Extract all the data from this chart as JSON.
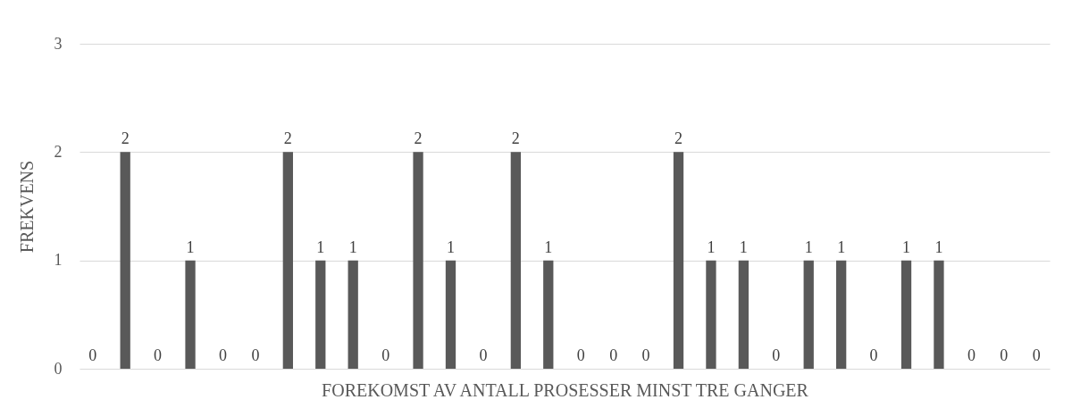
{
  "chart_data": {
    "type": "bar",
    "xlabel": "FOREKOMST AV ANTALL PROSESSER MINST TRE GANGER",
    "ylabel": "FREKVENS",
    "categories": [
      null,
      null,
      null,
      null,
      null,
      null,
      null,
      null,
      null,
      null,
      null,
      null,
      null,
      null,
      null,
      null,
      null,
      null,
      null,
      null,
      null,
      null,
      null,
      null,
      null,
      null,
      null,
      null,
      null,
      null
    ],
    "values": [
      0,
      2,
      0,
      1,
      0,
      0,
      2,
      1,
      1,
      0,
      2,
      1,
      0,
      2,
      1,
      0,
      0,
      0,
      2,
      1,
      1,
      0,
      1,
      1,
      0,
      1,
      1,
      0,
      0,
      0
    ],
    "color": "#595959",
    "ylim": [
      0,
      3
    ],
    "yticks": [
      0,
      1,
      2,
      3
    ],
    "grid": "y",
    "data_labels": true,
    "tick_labels": "y"
  }
}
